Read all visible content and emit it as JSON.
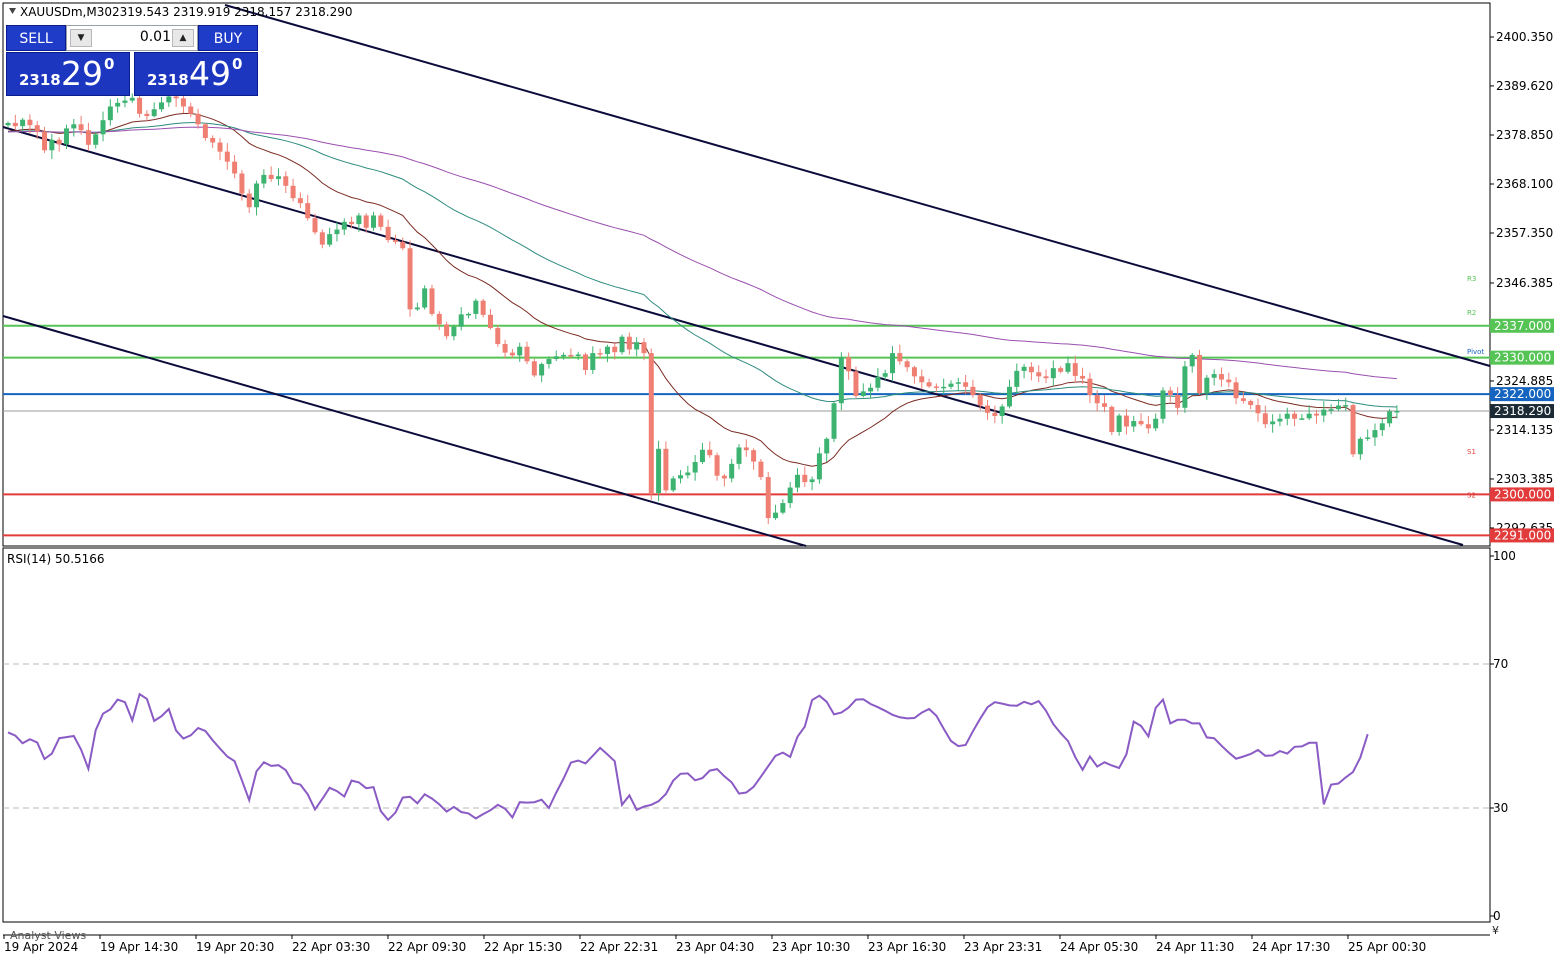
{
  "header": {
    "symbol": "XAUUSDm,M30",
    "ohlc": "2319.543 2319.919 2318.157 2318.290"
  },
  "trade_panel": {
    "sell_label": "SELL",
    "buy_label": "BUY",
    "lot": "0.01",
    "sell_price_small": "2318",
    "sell_price_big": "29",
    "sell_price_sup": "0",
    "buy_price_small": "2318",
    "buy_price_big": "49",
    "buy_price_sup": "0"
  },
  "colors": {
    "bull": "#3cb371",
    "bear": "#ef7f73",
    "channel": "#0b0b3b",
    "resistance": "#55c455",
    "support": "#e23b3b",
    "blue_level": "#1565c0",
    "ma_fast": "#7a2b22",
    "ma_mid": "#2e8b7e",
    "ma_slow": "#9b4fb0",
    "rsi": "#8a5bc4"
  },
  "chart_data": [
    {
      "type": "candlestick",
      "title": "XAUUSDm,M30",
      "price_axis_ticks": [
        "2400.350",
        "2389.620",
        "2378.850",
        "2368.100",
        "2357.350",
        "2346.385",
        "2324.885",
        "2314.135",
        "2303.385",
        "2292.635"
      ],
      "ylim": [
        2290,
        2402
      ],
      "time_labels": [
        "19 Apr 2024",
        "19 Apr 14:30",
        "19 Apr 20:30",
        "22 Apr 03:30",
        "22 Apr 09:30",
        "22 Apr 15:30",
        "22 Apr 22:31",
        "23 Apr 04:30",
        "23 Apr 10:30",
        "23 Apr 16:30",
        "23 Apr 23:31",
        "24 Apr 05:30",
        "24 Apr 11:30",
        "24 Apr 17:30",
        "25 Apr 00:30"
      ],
      "current_price": "2318.290",
      "levels": [
        {
          "value": 2337.0,
          "label": "2337.000",
          "kind": "resistance"
        },
        {
          "value": 2330.0,
          "label": "2330.000",
          "kind": "resistance"
        },
        {
          "value": 2322.0,
          "label": "2322.000",
          "kind": "blue"
        },
        {
          "value": 2300.0,
          "label": "2300.000",
          "kind": "support"
        },
        {
          "value": 2291.0,
          "label": "2291.000",
          "kind": "support"
        }
      ],
      "pivot_labels": [
        {
          "text": "R3",
          "price": 2347.5
        },
        {
          "text": "R2",
          "price": 2340.0
        },
        {
          "text": "Pivot",
          "price": 2331.5
        },
        {
          "text": "S1",
          "price": 2309.5
        },
        {
          "text": "S2",
          "price": 2300.0
        }
      ],
      "close_series": [
        2381.5,
        2380.8,
        2382.2,
        2381.0,
        2379.6,
        2375.5,
        2377.8,
        2376.8,
        2380.3,
        2381.2,
        2379.9,
        2376.7,
        2379.0,
        2382.1,
        2385.1,
        2385.9,
        2386.4,
        2387.0,
        2383.5,
        2383.0,
        2384.5,
        2386.0,
        2387.3,
        2386.9,
        2385.1,
        2383.5,
        2381.2,
        2378.2,
        2377.2,
        2375.2,
        2373.0,
        2370.4,
        2366.0,
        2363.0,
        2368.2,
        2370.1,
        2369.2,
        2369.8,
        2367.7,
        2365.0,
        2363.9,
        2360.6,
        2357.5,
        2354.8,
        2357.1,
        2358.1,
        2359.8,
        2359.3,
        2361.2,
        2358.5,
        2361.2,
        2358.7,
        2355.8,
        2355.4,
        2354.0,
        2340.6,
        2341.0,
        2345.2,
        2339.6,
        2337.3,
        2334.7,
        2336.8,
        2339.5,
        2339.6,
        2342.5,
        2339.4,
        2336.5,
        2333.0,
        2331.1,
        2330.5,
        2332.4,
        2329.2,
        2326.1,
        2328.6,
        2329.7,
        2330.3,
        2330.6,
        2330.4,
        2330.7,
        2327.3,
        2331.0,
        2330.8,
        2332.4,
        2331.2,
        2334.6,
        2331.8,
        2333.4,
        2331.0,
        2300.3,
        2310.0,
        2300.9,
        2303.5,
        2304.2,
        2304.8,
        2307.1,
        2309.8,
        2308.6,
        2304.1,
        2303.5,
        2306.7,
        2310.3,
        2309.7,
        2307.2,
        2303.8,
        2294.8,
        2296.0,
        2298.1,
        2301.5,
        2304.3,
        2302.7,
        2303.3,
        2309.0,
        2312.2,
        2320.0,
        2330.1,
        2327.0,
        2321.6,
        2322.6,
        2323.4,
        2325.8,
        2326.6,
        2331.0,
        2329.2,
        2327.9,
        2325.9,
        2324.6,
        2323.7,
        2323.6,
        2323.6,
        2324.3,
        2324.6,
        2323.6,
        2321.8,
        2319.5,
        2317.9,
        2317.2,
        2319.3,
        2323.6,
        2327.1,
        2328.0,
        2326.8,
        2325.9,
        2325.5,
        2327.7,
        2326.9,
        2328.8,
        2326.0,
        2325.4,
        2321.8,
        2320.0,
        2319.2,
        2313.7,
        2317.3,
        2314.9,
        2316.1,
        2315.4,
        2314.5,
        2316.6,
        2322.8,
        2321.8,
        2319.0,
        2328.1,
        2330.6,
        2322.2,
        2325.6,
        2326.4,
        2325.2,
        2324.6,
        2321.1,
        2320.5,
        2319.6,
        2317.8,
        2315.4,
        2316.0,
        2316.6,
        2317.7,
        2316.6,
        2316.7,
        2317.7,
        2317.3,
        2318.6,
        2318.7,
        2319.5,
        2319.6,
        2308.8,
        2312.2,
        2312.5,
        2314.1,
        2315.6,
        2318.2,
        2318.3
      ]
    },
    {
      "type": "line",
      "title": "RSI(14) 50.5166",
      "ylim": [
        0,
        100
      ],
      "y_ticks": [
        100,
        70,
        30,
        0
      ],
      "levels": [
        70,
        30
      ],
      "values": [
        51.0,
        50.1,
        48.0,
        49.1,
        48.2,
        43.6,
        45.1,
        49.4,
        49.7,
        50.0,
        46.2,
        40.9,
        51.6,
        56.2,
        57.4,
        60.1,
        59.4,
        54.3,
        61.6,
        60.3,
        54.2,
        55.5,
        57.5,
        51.5,
        49.3,
        50.2,
        52.2,
        51.4,
        48.8,
        46.5,
        44.3,
        43.0,
        37.7,
        32.2,
        40.2,
        42.7,
        41.7,
        41.9,
        40.5,
        37.0,
        36.5,
        33.8,
        29.6,
        32.5,
        35.6,
        34.7,
        33.2,
        37.6,
        37.1,
        35.5,
        35.8,
        29.1,
        26.7,
        28.7,
        32.9,
        33.1,
        31.3,
        33.8,
        32.6,
        31.0,
        29.0,
        30.3,
        28.9,
        28.5,
        27.1,
        28.3,
        29.4,
        30.9,
        29.8,
        27.4,
        31.6,
        31.5,
        31.6,
        32.3,
        30.0,
        34.3,
        38.2,
        42.6,
        43.2,
        42.4,
        44.5,
        46.7,
        44.9,
        43.0,
        30.9,
        33.5,
        29.5,
        30.4,
        30.9,
        31.9,
        33.9,
        37.6,
        39.5,
        39.6,
        37.7,
        38.3,
        40.4,
        40.8,
        38.8,
        37.1,
        34.0,
        34.3,
        35.9,
        38.7,
        41.6,
        44.5,
        45.4,
        44.2,
        49.8,
        52.6,
        60.0,
        61.2,
        59.5,
        56.0,
        56.5,
        57.9,
        60.1,
        60.2,
        58.9,
        58.0,
        57.0,
        55.9,
        55.2,
        54.9,
        55.0,
        56.5,
        57.5,
        55.6,
        52.0,
        48.6,
        47.2,
        47.5,
        51.3,
        54.8,
        58.0,
        59.4,
        59.0,
        58.5,
        58.4,
        59.5,
        58.8,
        59.7,
        57.0,
        53.3,
        50.8,
        48.6,
        44.1,
        40.6,
        44.3,
        41.5,
        42.7,
        41.8,
        41.1,
        44.9,
        54.0,
        52.8,
        49.9,
        57.8,
        60.1,
        53.5,
        54.5,
        54.5,
        53.5,
        53.5,
        49.6,
        49.4,
        47.3,
        45.4,
        43.7,
        44.3,
        45.0,
        46.1,
        44.5,
        44.6,
        45.8,
        45.1,
        47.0,
        47.1,
        48.1,
        48.1,
        31.0,
        36.5,
        36.8,
        38.5,
        40.0,
        44.0,
        50.5
      ]
    }
  ]
}
